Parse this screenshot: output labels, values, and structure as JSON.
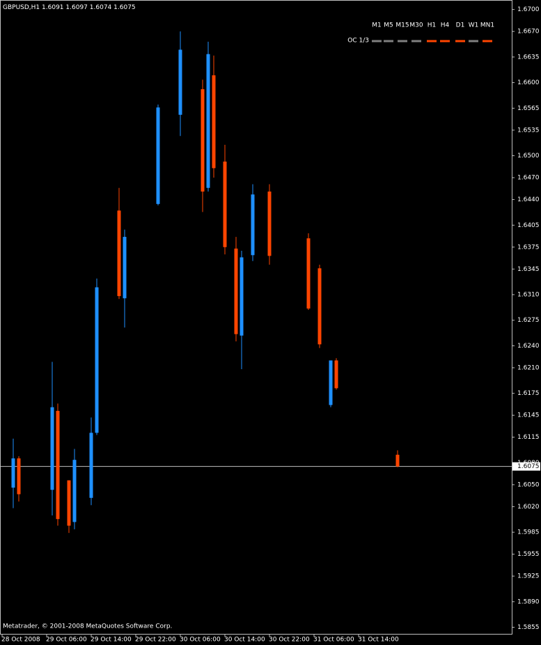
{
  "chart_data": {
    "type": "candlestick",
    "title": "GBPUSD,H1",
    "watermark": "Metatrader, © 2001-2008 MetaQuotes Software Corp.",
    "up_color": "#1e90ff",
    "down_color": "#ff4500",
    "x": [
      2,
      3,
      9,
      10,
      12,
      13,
      16,
      17,
      21,
      22,
      28,
      32,
      36,
      37,
      38,
      40,
      42,
      43,
      45,
      48,
      55,
      57,
      59,
      60,
      71
    ],
    "open": [
      1.6046,
      1.6086,
      1.6043,
      1.6151,
      1.6056,
      1.5999,
      1.6032,
      1.6121,
      1.6425,
      1.6305,
      1.6434,
      1.6556,
      1.6591,
      1.6456,
      1.661,
      1.6492,
      1.6373,
      1.6254,
      1.6364,
      1.6451,
      1.6387,
      1.6346,
      1.6159,
      1.622,
      1.6091
    ],
    "high": [
      1.6113,
      1.6089,
      1.6218,
      1.6161,
      1.6056,
      1.6099,
      1.6142,
      1.6332,
      1.6456,
      1.6399,
      1.657,
      1.667,
      1.6604,
      1.6656,
      1.6637,
      1.6515,
      1.6389,
      1.637,
      1.6461,
      1.6461,
      1.6394,
      1.6351,
      1.6218,
      1.6223,
      1.6097
    ],
    "low": [
      1.6018,
      1.6027,
      1.6008,
      1.5994,
      1.5984,
      1.5989,
      1.6022,
      1.6118,
      1.6304,
      1.6265,
      1.6432,
      1.6527,
      1.6423,
      1.6451,
      1.647,
      1.6365,
      1.6246,
      1.6208,
      1.6356,
      1.6351,
      1.6289,
      1.6237,
      1.6156,
      1.618,
      1.6074
    ],
    "close": [
      1.6086,
      1.6037,
      1.6156,
      1.6003,
      1.5994,
      1.6084,
      1.6121,
      1.632,
      1.6308,
      1.6389,
      1.6566,
      1.6645,
      1.6451,
      1.6639,
      1.6483,
      1.6375,
      1.6256,
      1.6361,
      1.6447,
      1.6363,
      1.6291,
      1.6242,
      1.622,
      1.6182,
      1.6075
    ],
    "ylim": [
      1.5846,
      1.6713
    ],
    "yticks": [
      {
        "value": 1.67,
        "label": "1.6700"
      },
      {
        "value": 1.667,
        "label": "1.6670"
      },
      1.6635,
      {
        "value": 1.66,
        "label": "1.6600"
      },
      1.6565,
      1.6535,
      {
        "value": 1.65,
        "label": "1.6500"
      },
      {
        "value": 1.647,
        "label": "1.6470"
      },
      {
        "value": 1.644,
        "label": "1.6440"
      },
      1.6405,
      1.6375,
      1.6345,
      {
        "value": 1.631,
        "label": "1.6310"
      },
      1.6275,
      {
        "value": 1.624,
        "label": "1.6240"
      },
      {
        "value": 1.621,
        "label": "1.6210"
      },
      1.6175,
      1.6145,
      1.6115,
      {
        "value": 1.608,
        "label": "1.6080"
      },
      {
        "value": 1.605,
        "label": "1.6050"
      },
      {
        "value": 1.602,
        "label": "1.6020"
      },
      1.5985,
      1.5955,
      1.5925,
      {
        "value": 1.589,
        "label": "1.5890"
      },
      1.5855
    ],
    "xlim": [
      -0.375,
      91.5
    ],
    "xticks": [
      {
        "value": 0,
        "label": "28 Oct 2008"
      },
      {
        "value": 8,
        "label": "29 Oct 06:00"
      },
      {
        "value": 16,
        "label": "29 Oct 14:00"
      },
      {
        "value": 24,
        "label": "29 Oct 22:00"
      },
      {
        "value": 32,
        "label": "30 Oct 06:00"
      },
      {
        "value": 40,
        "label": "30 Oct 14:00"
      },
      {
        "value": 48,
        "label": "30 Oct 22:00"
      },
      {
        "value": 56,
        "label": "31 Oct 06:00"
      },
      {
        "value": 64,
        "label": "31 Oct 14:00"
      }
    ],
    "indicator_label": "OC 1/3",
    "timeframes": [
      {
        "label": "M1",
        "color": "#808080"
      },
      {
        "label": "M5",
        "color": "#808080"
      },
      {
        "label": "M15",
        "color": "#808080"
      },
      {
        "label": "M30",
        "color": "#808080"
      },
      {
        "label": "H1",
        "color": "#ff4500"
      },
      {
        "label": "H4",
        "color": "#ff4500"
      },
      {
        "label": "D1",
        "color": "#ff4500"
      },
      {
        "label": "W1",
        "color": "#808080"
      },
      {
        "label": "MN1",
        "color": "#ff4500"
      }
    ]
  }
}
